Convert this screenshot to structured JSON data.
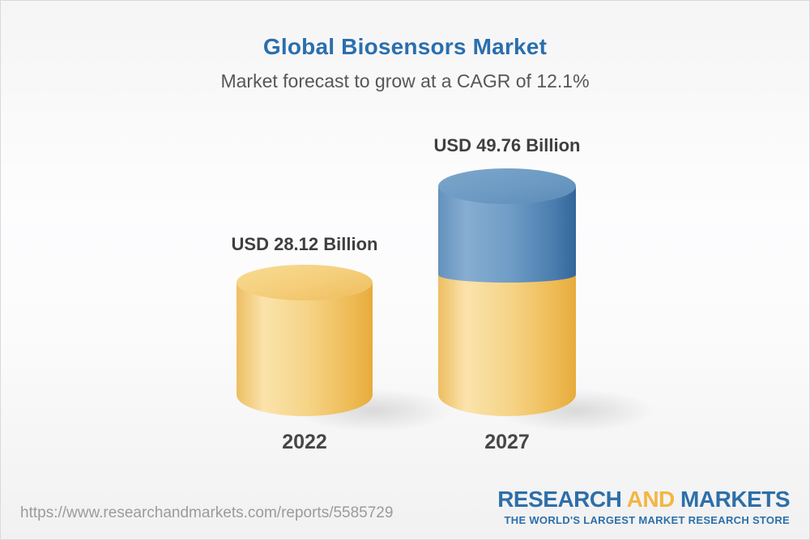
{
  "header": {
    "title": "Global Biosensors Market",
    "subtitle": "Market forecast to grow at a CAGR of 12.1%",
    "title_color": "#2b6fac"
  },
  "chart": {
    "bars": [
      {
        "year": "2022",
        "value_label": "USD 28.12 Billion",
        "value": 28.12,
        "color": "#f4cd79"
      },
      {
        "year": "2027",
        "value_label": "USD 49.76 Billion",
        "value": 49.76,
        "base_color": "#f4cd79",
        "growth_color": "#4a7dae"
      }
    ]
  },
  "chart_data": {
    "type": "bar",
    "title": "Global Biosensors Market",
    "subtitle": "Market forecast to grow at a CAGR of 12.1%",
    "cagr_percent": 12.1,
    "unit": "USD Billion",
    "categories": [
      "2022",
      "2027"
    ],
    "values": [
      28.12,
      49.76
    ],
    "data_labels": [
      "USD 28.12 Billion",
      "USD 49.76 Billion"
    ],
    "style": "3d-cylinder",
    "colors": {
      "base_segment": "#f4cd79",
      "growth_segment": "#4a7dae"
    },
    "notes": "2027 cylinder is stacked: gold base equal to 2022 value with blue growth segment on top",
    "grid": false,
    "legend": false
  },
  "footer": {
    "url": "https://www.researchandmarkets.com/reports/5585729",
    "logo": {
      "word1": "RESEARCH",
      "word2": "AND",
      "word3": "MARKETS",
      "tagline": "THE WORLD'S LARGEST MARKET RESEARCH STORE",
      "blue": "#2d6fa9",
      "gold": "#f2b742"
    }
  }
}
